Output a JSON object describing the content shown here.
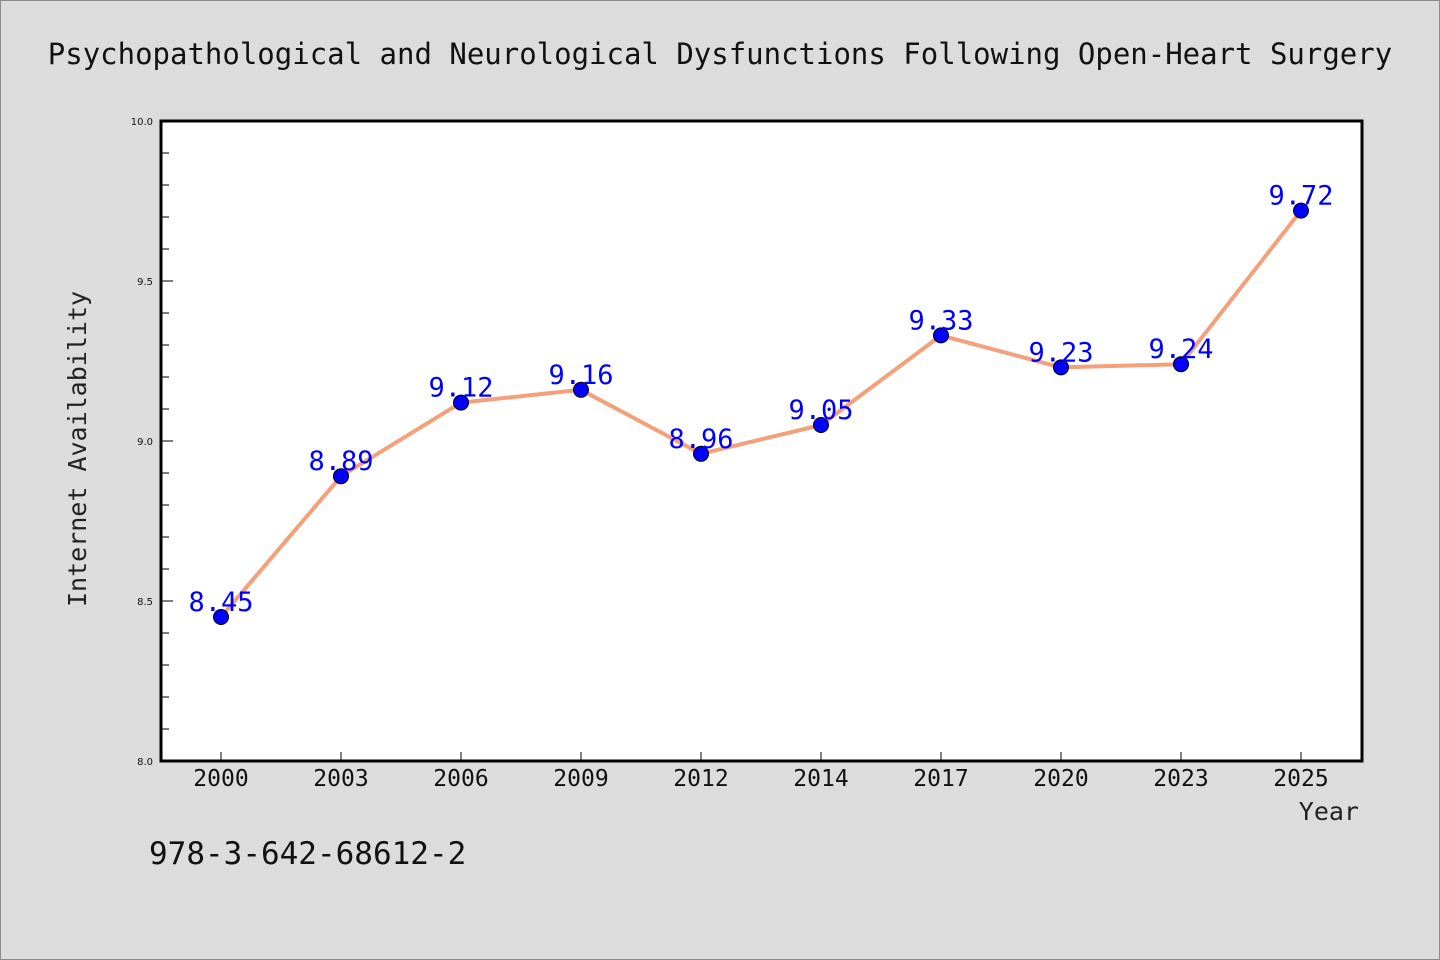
{
  "footnote": "978-3-642-68612-2",
  "colors": {
    "background": "#dcdcdc",
    "plot_background": "#ffffff",
    "line": "#f4a07a",
    "marker": "#0000ff",
    "data_label": "#0000ff"
  },
  "chart_data": {
    "type": "line",
    "title": "Psychopathological and Neurological Dysfunctions Following Open-Heart Surgery",
    "xlabel": "Year",
    "ylabel": "Internet Availability",
    "categories": [
      "2000",
      "2003",
      "2006",
      "2009",
      "2012",
      "2014",
      "2017",
      "2020",
      "2023",
      "2025"
    ],
    "series": [
      {
        "values": [
          8.45,
          8.89,
          9.12,
          9.16,
          8.96,
          9.05,
          9.33,
          9.23,
          9.24,
          9.72
        ]
      }
    ],
    "data_labels": [
      "8.45",
      "8.89",
      "9.12",
      "9.16",
      "8.96",
      "9.05",
      "9.33",
      "9.23",
      "9.24",
      "9.72"
    ],
    "ylim": [
      8.0,
      10.0
    ],
    "yticks": [
      "8.0",
      "8.5",
      "9.0",
      "9.5",
      "10.0"
    ],
    "ytick_values": [
      8.0,
      8.5,
      9.0,
      9.5,
      10.0
    ],
    "grid": false,
    "legend": "none"
  }
}
